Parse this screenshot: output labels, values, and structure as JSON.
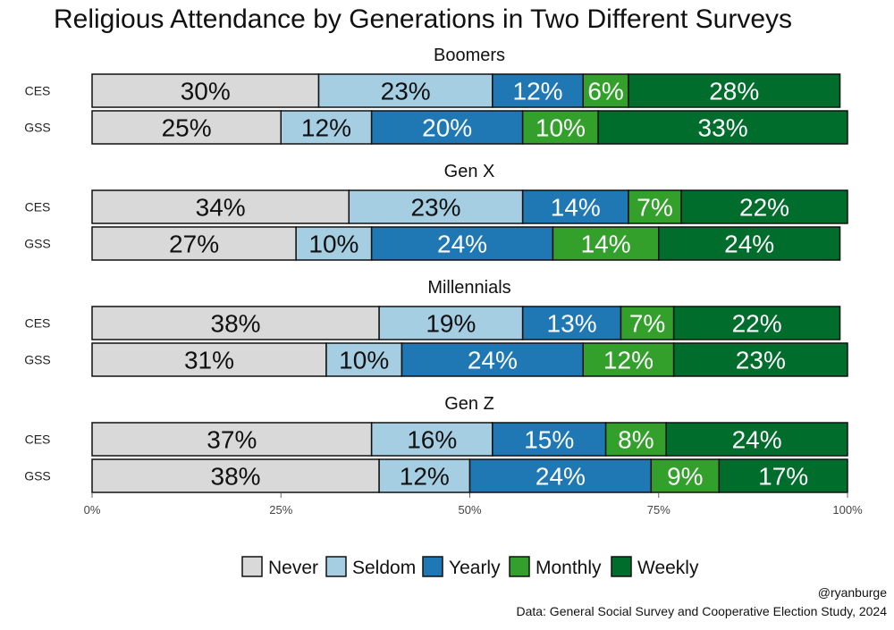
{
  "chart_data": {
    "type": "bar",
    "orientation": "horizontal",
    "stacked": true,
    "title": "Religious Attendance by Generations in Two Different Surveys",
    "xlim": [
      0,
      100
    ],
    "x_ticks": [
      "0%",
      "25%",
      "50%",
      "75%",
      "100%"
    ],
    "grid": false,
    "legend_position": "bottom",
    "categories": [
      "Never",
      "Seldom",
      "Yearly",
      "Monthly",
      "Weekly"
    ],
    "colors": [
      "#d9d9d9",
      "#a6cee3",
      "#1f78b4",
      "#33a02c",
      "#006d2c"
    ],
    "label_colors": [
      "#111111",
      "#111111",
      "#ffffff",
      "#ffffff",
      "#ffffff"
    ],
    "groups": [
      {
        "name": "Boomers",
        "rows": [
          {
            "survey": "CES",
            "values": [
              30,
              23,
              12,
              6,
              28
            ],
            "labels": [
              "30%",
              "23%",
              "12%",
              "6%",
              "28%"
            ]
          },
          {
            "survey": "GSS",
            "values": [
              25,
              12,
              20,
              10,
              33
            ],
            "labels": [
              "25%",
              "12%",
              "20%",
              "10%",
              "33%"
            ]
          }
        ]
      },
      {
        "name": "Gen X",
        "rows": [
          {
            "survey": "CES",
            "values": [
              34,
              23,
              14,
              7,
              22
            ],
            "labels": [
              "34%",
              "23%",
              "14%",
              "7%",
              "22%"
            ]
          },
          {
            "survey": "GSS",
            "values": [
              27,
              10,
              24,
              14,
              24
            ],
            "labels": [
              "27%",
              "10%",
              "24%",
              "14%",
              "24%"
            ]
          }
        ]
      },
      {
        "name": "Millennials",
        "rows": [
          {
            "survey": "CES",
            "values": [
              38,
              19,
              13,
              7,
              22
            ],
            "labels": [
              "38%",
              "19%",
              "13%",
              "7%",
              "22%"
            ]
          },
          {
            "survey": "GSS",
            "values": [
              31,
              10,
              24,
              12,
              23
            ],
            "labels": [
              "31%",
              "10%",
              "24%",
              "12%",
              "23%"
            ]
          }
        ]
      },
      {
        "name": "Gen Z",
        "rows": [
          {
            "survey": "CES",
            "values": [
              37,
              16,
              15,
              8,
              24
            ],
            "labels": [
              "37%",
              "16%",
              "15%",
              "8%",
              "24%"
            ]
          },
          {
            "survey": "GSS",
            "values": [
              38,
              12,
              24,
              9,
              17
            ],
            "labels": [
              "38%",
              "12%",
              "24%",
              "9%",
              "17%"
            ]
          }
        ]
      }
    ]
  },
  "credit": "@ryanburge",
  "source": "Data: General Social Survey and Cooperative Election Study, 2024"
}
